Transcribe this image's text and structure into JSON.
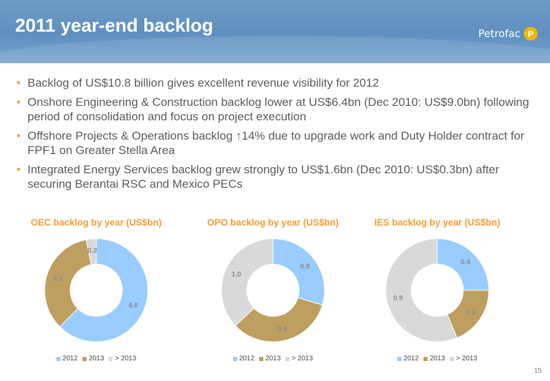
{
  "header": {
    "title": "2011 year-end backlog",
    "logo_text": "Petrofac",
    "logo_mark": "P",
    "brand_color": "#6f9cc6"
  },
  "bullets": [
    "Backlog of US$10.8 billion gives excellent revenue visibility for 2012",
    "Onshore Engineering & Construction backlog lower at US$6.4bn (Dec 2010: US$9.0bn) following period of consolidation and focus on project execution",
    "Offshore Projects & Operations backlog ↑14% due to upgrade work and Duty Holder contract for FPF1 on Greater Stella Area",
    "Integrated Energy Services backlog grew strongly to US$1.6bn (Dec 2010: US$0.3bn) after securing Berantai RSC and Mexico PECs"
  ],
  "page_number": "15",
  "chart_data": [
    {
      "type": "pie",
      "title": "OEC backlog by year (US$bn)",
      "categories": [
        "2012",
        "2013",
        "> 2013"
      ],
      "values": [
        4.0,
        2.2,
        0.2
      ],
      "labels": [
        "4.0",
        "2.2",
        "0.2"
      ],
      "colors": [
        "#99ccff",
        "#bf9f5f",
        "#d9d9d9"
      ],
      "legend": "bottom"
    },
    {
      "type": "pie",
      "title": "OPO backlog by year (US$bn)",
      "categories": [
        "2012",
        "2013",
        "> 2013"
      ],
      "values": [
        0.8,
        0.9,
        1.0
      ],
      "labels": [
        "0.8",
        "0.9",
        "1.0"
      ],
      "colors": [
        "#99ccff",
        "#bf9f5f",
        "#d9d9d9"
      ],
      "legend": "bottom"
    },
    {
      "type": "pie",
      "title": "IES backlog by year (US$bn)",
      "categories": [
        "2012",
        "2013",
        "> 2013"
      ],
      "values": [
        0.4,
        0.3,
        0.9
      ],
      "labels": [
        "0.4",
        "0.3",
        "0.9"
      ],
      "colors": [
        "#99ccff",
        "#bf9f5f",
        "#d9d9d9"
      ],
      "legend": "bottom"
    }
  ]
}
